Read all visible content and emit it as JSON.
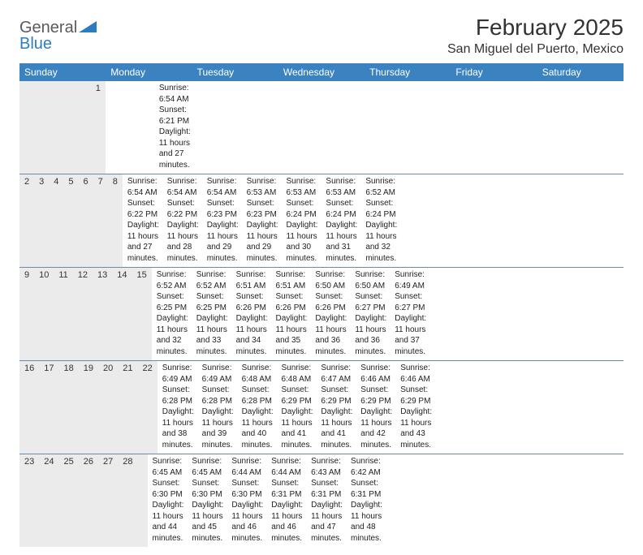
{
  "logo": {
    "text1": "General",
    "text2": "Blue"
  },
  "title": "February 2025",
  "location": "San Miguel del Puerto, Mexico",
  "colors": {
    "header_bar": "#3b83c0",
    "header_text": "#ffffff",
    "daynum_bg": "#ebebeb",
    "rule": "#6a8aa8",
    "logo_gray": "#5a5a5a",
    "logo_blue": "#2e7cc0",
    "body_text": "#222222"
  },
  "weekdays": [
    "Sunday",
    "Monday",
    "Tuesday",
    "Wednesday",
    "Thursday",
    "Friday",
    "Saturday"
  ],
  "weeks": [
    {
      "nums": [
        "",
        "",
        "",
        "",
        "",
        "",
        "1"
      ],
      "info": [
        "",
        "",
        "",
        "",
        "",
        "",
        "Sunrise: 6:54 AM\nSunset: 6:21 PM\nDaylight: 11 hours and 27 minutes."
      ]
    },
    {
      "nums": [
        "2",
        "3",
        "4",
        "5",
        "6",
        "7",
        "8"
      ],
      "info": [
        "Sunrise: 6:54 AM\nSunset: 6:22 PM\nDaylight: 11 hours and 27 minutes.",
        "Sunrise: 6:54 AM\nSunset: 6:22 PM\nDaylight: 11 hours and 28 minutes.",
        "Sunrise: 6:54 AM\nSunset: 6:23 PM\nDaylight: 11 hours and 29 minutes.",
        "Sunrise: 6:53 AM\nSunset: 6:23 PM\nDaylight: 11 hours and 29 minutes.",
        "Sunrise: 6:53 AM\nSunset: 6:24 PM\nDaylight: 11 hours and 30 minutes.",
        "Sunrise: 6:53 AM\nSunset: 6:24 PM\nDaylight: 11 hours and 31 minutes.",
        "Sunrise: 6:52 AM\nSunset: 6:24 PM\nDaylight: 11 hours and 32 minutes."
      ]
    },
    {
      "nums": [
        "9",
        "10",
        "11",
        "12",
        "13",
        "14",
        "15"
      ],
      "info": [
        "Sunrise: 6:52 AM\nSunset: 6:25 PM\nDaylight: 11 hours and 32 minutes.",
        "Sunrise: 6:52 AM\nSunset: 6:25 PM\nDaylight: 11 hours and 33 minutes.",
        "Sunrise: 6:51 AM\nSunset: 6:26 PM\nDaylight: 11 hours and 34 minutes.",
        "Sunrise: 6:51 AM\nSunset: 6:26 PM\nDaylight: 11 hours and 35 minutes.",
        "Sunrise: 6:50 AM\nSunset: 6:26 PM\nDaylight: 11 hours and 36 minutes.",
        "Sunrise: 6:50 AM\nSunset: 6:27 PM\nDaylight: 11 hours and 36 minutes.",
        "Sunrise: 6:49 AM\nSunset: 6:27 PM\nDaylight: 11 hours and 37 minutes."
      ]
    },
    {
      "nums": [
        "16",
        "17",
        "18",
        "19",
        "20",
        "21",
        "22"
      ],
      "info": [
        "Sunrise: 6:49 AM\nSunset: 6:28 PM\nDaylight: 11 hours and 38 minutes.",
        "Sunrise: 6:49 AM\nSunset: 6:28 PM\nDaylight: 11 hours and 39 minutes.",
        "Sunrise: 6:48 AM\nSunset: 6:28 PM\nDaylight: 11 hours and 40 minutes.",
        "Sunrise: 6:48 AM\nSunset: 6:29 PM\nDaylight: 11 hours and 41 minutes.",
        "Sunrise: 6:47 AM\nSunset: 6:29 PM\nDaylight: 11 hours and 41 minutes.",
        "Sunrise: 6:46 AM\nSunset: 6:29 PM\nDaylight: 11 hours and 42 minutes.",
        "Sunrise: 6:46 AM\nSunset: 6:29 PM\nDaylight: 11 hours and 43 minutes."
      ]
    },
    {
      "nums": [
        "23",
        "24",
        "25",
        "26",
        "27",
        "28",
        ""
      ],
      "info": [
        "Sunrise: 6:45 AM\nSunset: 6:30 PM\nDaylight: 11 hours and 44 minutes.",
        "Sunrise: 6:45 AM\nSunset: 6:30 PM\nDaylight: 11 hours and 45 minutes.",
        "Sunrise: 6:44 AM\nSunset: 6:30 PM\nDaylight: 11 hours and 46 minutes.",
        "Sunrise: 6:44 AM\nSunset: 6:31 PM\nDaylight: 11 hours and 46 minutes.",
        "Sunrise: 6:43 AM\nSunset: 6:31 PM\nDaylight: 11 hours and 47 minutes.",
        "Sunrise: 6:42 AM\nSunset: 6:31 PM\nDaylight: 11 hours and 48 minutes.",
        ""
      ]
    }
  ]
}
